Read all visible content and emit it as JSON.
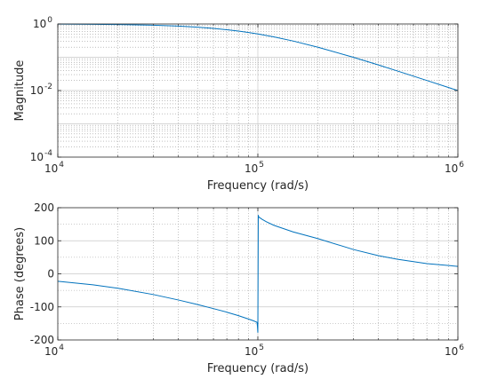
{
  "chart_data": [
    {
      "type": "line",
      "xlabel": "Frequency (rad/s)",
      "ylabel": "Magnitude",
      "x_scale": "log",
      "y_scale": "log",
      "xlim": [
        10000,
        1000000
      ],
      "ylim": [
        0.0001,
        1
      ],
      "grid": true,
      "minor_grid": true,
      "x_ticks": [
        {
          "base": "10",
          "exp": "4"
        },
        {
          "base": "10",
          "exp": "5"
        },
        {
          "base": "10",
          "exp": "6"
        }
      ],
      "y_ticks": [
        {
          "value": 0.0001,
          "base": "10",
          "exp": "-4"
        },
        {
          "value": 0.01,
          "base": "10",
          "exp": "-2"
        },
        {
          "value": 1,
          "base": "10",
          "exp": "0"
        }
      ],
      "series": [
        {
          "color": "#0072BD",
          "x": [
            10000,
            15000,
            20000,
            30000,
            40000,
            50000,
            60000,
            70000,
            80000,
            90000,
            100000,
            120000,
            150000,
            200000,
            300000,
            400000,
            500000,
            700000,
            1000000
          ],
          "y": [
            0.99,
            0.978,
            0.962,
            0.917,
            0.862,
            0.8,
            0.735,
            0.671,
            0.61,
            0.552,
            0.5,
            0.41,
            0.308,
            0.2,
            0.1,
            0.0588,
            0.0385,
            0.02,
            0.01
          ]
        }
      ]
    },
    {
      "type": "line",
      "xlabel": "Frequency (rad/s)",
      "ylabel": "Phase (degrees)",
      "x_scale": "log",
      "xlim": [
        10000,
        1000000
      ],
      "ylim": [
        -200,
        200
      ],
      "grid": true,
      "minor_grid": true,
      "x_ticks": [
        {
          "base": "10",
          "exp": "4"
        },
        {
          "base": "10",
          "exp": "5"
        },
        {
          "base": "10",
          "exp": "6"
        }
      ],
      "y_ticks": [
        {
          "value": -200,
          "label": "-200"
        },
        {
          "value": -100,
          "label": "-100"
        },
        {
          "value": 0,
          "label": "0"
        },
        {
          "value": 100,
          "label": "100"
        },
        {
          "value": 200,
          "label": "200"
        }
      ],
      "series": [
        {
          "color": "#0072BD",
          "x": [
            10000,
            15000,
            20000,
            30000,
            40000,
            50000,
            60000,
            70000,
            80000,
            90000,
            95000,
            99000,
            99500,
            100000,
            100500,
            101000,
            105000,
            110000,
            120000,
            150000,
            200000,
            300000,
            400000,
            500000,
            700000,
            1000000
          ],
          "y": [
            -22.6,
            -33.3,
            -43.6,
            -62.6,
            -79.0,
            -93.0,
            -105.2,
            -116.0,
            -126.5,
            -137.0,
            -142.0,
            -146.5,
            -158.0,
            -178.0,
            178.0,
            172.0,
            165.0,
            158.0,
            147.0,
            126.9,
            106.3,
            73.7,
            55.0,
            44.0,
            31.0,
            22.6
          ]
        }
      ]
    }
  ]
}
